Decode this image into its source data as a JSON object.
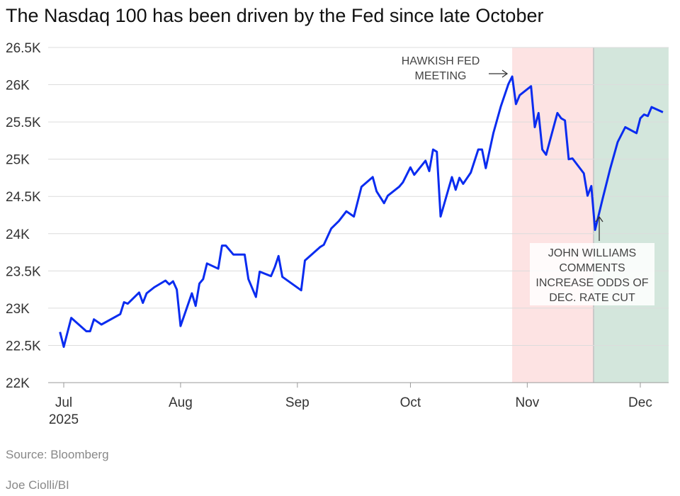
{
  "chart_data": {
    "type": "line",
    "title": "The Nasdaq 100 has been driven by the Fed since late October",
    "xlabel": "",
    "ylabel": "",
    "x_unit": "days since 2025-07-01",
    "ylim": [
      22000,
      26500
    ],
    "grid": true,
    "y_ticks": [
      {
        "value": 26500,
        "label": "26.5K"
      },
      {
        "value": 26000,
        "label": "26K"
      },
      {
        "value": 25500,
        "label": "25.5K"
      },
      {
        "value": 25000,
        "label": "25K"
      },
      {
        "value": 24500,
        "label": "24.5K"
      },
      {
        "value": 24000,
        "label": "24K"
      },
      {
        "value": 23500,
        "label": "23.5K"
      },
      {
        "value": 23000,
        "label": "23K"
      },
      {
        "value": 22500,
        "label": "22.5K"
      },
      {
        "value": 22000,
        "label": "22K"
      }
    ],
    "x_ticks": [
      {
        "day": 0,
        "label": "Jul",
        "sublabel": "2025"
      },
      {
        "day": 31,
        "label": "Aug"
      },
      {
        "day": 62,
        "label": "Sep"
      },
      {
        "day": 92,
        "label": "Oct"
      },
      {
        "day": 123,
        "label": "Nov"
      },
      {
        "day": 153,
        "label": "Dec"
      }
    ],
    "series": [
      {
        "name": "Nasdaq 100",
        "color": "#0a2cf0",
        "x": [
          -1,
          0,
          2,
          6,
          7,
          8,
          10,
          15,
          16,
          17,
          20,
          21,
          22,
          24,
          27,
          28,
          29,
          30,
          31,
          34,
          35,
          36,
          37,
          38,
          41,
          42,
          43,
          45,
          48,
          49,
          51,
          52,
          55,
          56,
          57,
          58,
          63,
          64,
          66,
          68,
          69,
          71,
          73,
          75,
          77,
          79,
          82,
          83,
          85,
          86,
          89,
          90,
          92,
          93,
          96,
          97,
          98,
          99,
          100,
          103,
          104,
          105,
          106,
          108,
          110,
          111,
          112,
          114,
          116,
          118,
          119,
          120,
          121,
          124,
          125,
          126,
          127,
          128,
          131,
          132,
          133,
          134,
          135,
          138,
          139,
          140,
          141,
          143,
          145,
          147,
          149,
          152,
          153,
          154,
          155,
          156,
          159
        ],
        "values": [
          22680,
          22480,
          22870,
          22690,
          22690,
          22850,
          22780,
          22920,
          23080,
          23060,
          23210,
          23070,
          23200,
          23280,
          23370,
          23320,
          23360,
          23250,
          22760,
          23200,
          23030,
          23330,
          23390,
          23600,
          23530,
          23840,
          23840,
          23720,
          23720,
          23390,
          23150,
          23490,
          23430,
          23550,
          23700,
          23420,
          23240,
          23640,
          23730,
          23820,
          23850,
          24070,
          24170,
          24300,
          24230,
          24630,
          24760,
          24570,
          24410,
          24510,
          24630,
          24690,
          24890,
          24790,
          24980,
          24840,
          25130,
          25100,
          24230,
          24760,
          24590,
          24750,
          24670,
          24820,
          25130,
          25130,
          24880,
          25350,
          25710,
          26010,
          26110,
          25740,
          25860,
          25980,
          25430,
          25620,
          25130,
          25060,
          25620,
          25550,
          25520,
          25000,
          25010,
          24810,
          24510,
          24640,
          24050,
          24470,
          24870,
          25230,
          25430,
          25350,
          25550,
          25600,
          25580,
          25700,
          25630
        ]
      }
    ],
    "shaded_regions": [
      {
        "from_day": 119,
        "to_day": 140.6,
        "color": "#fde3e3"
      },
      {
        "from_day": 140.6,
        "to_day": 160.5,
        "color": "#d3e6dc"
      }
    ],
    "annotations": [
      {
        "lines": [
          "HAWKISH FED",
          "MEETING"
        ],
        "point_day": 119,
        "point_value": 26110
      },
      {
        "lines": [
          "JOHN WILLIAMS",
          "COMMENTS",
          "INCREASE ODDS OF",
          "DEC. RATE CUT"
        ],
        "point_day": 141,
        "point_value": 24050
      }
    ]
  },
  "footer": {
    "source": "Source: Bloomberg",
    "credit": "Joe Ciolli/BI"
  }
}
